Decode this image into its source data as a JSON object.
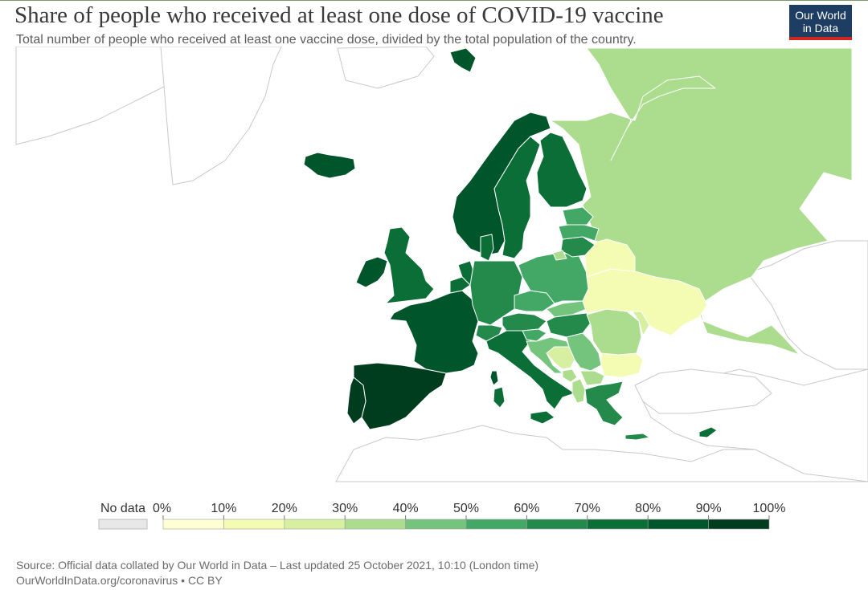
{
  "title": "Share of people who received at least one dose of COVID-19 vaccine",
  "subtitle": "Total number of people who received at least one vaccine dose, divided by the total population of the country.",
  "logo": {
    "line1": "Our World",
    "line2": "in Data"
  },
  "colors": {
    "top_line": "#7a9a6a",
    "border": "#ffffff",
    "background_land_stroke": "#c8c8c8",
    "no_data": "#e8e8e8"
  },
  "legend": {
    "no_data_label": "No data",
    "ticks": [
      "0%",
      "10%",
      "20%",
      "30%",
      "40%",
      "50%",
      "60%",
      "70%",
      "80%",
      "90%",
      "100%"
    ],
    "bin_colors": [
      "#ffffd4",
      "#f4fbb2",
      "#d6efa1",
      "#acdc8e",
      "#74c47d",
      "#43a866",
      "#238a4c",
      "#0b6e36",
      "#00552a",
      "#003d1f"
    ]
  },
  "source": {
    "line1": "Source: Official data collated by Our World in Data – Last updated 25 October 2021, 10:10 (London time)",
    "line2": "OurWorldInData.org/coronavirus • CC BY"
  },
  "countries": [
    {
      "id": "russia",
      "bin": 3
    },
    {
      "id": "norway",
      "bin": 8
    },
    {
      "id": "sweden",
      "bin": 7
    },
    {
      "id": "finland",
      "bin": 7
    },
    {
      "id": "iceland",
      "bin": 8
    },
    {
      "id": "svalbard",
      "bin": 8
    },
    {
      "id": "ireland",
      "bin": 8
    },
    {
      "id": "united-kingdom",
      "bin": 7
    },
    {
      "id": "france",
      "bin": 8
    },
    {
      "id": "spain",
      "bin": 9
    },
    {
      "id": "portugal",
      "bin": 9
    },
    {
      "id": "belgium",
      "bin": 7
    },
    {
      "id": "netherlands",
      "bin": 7
    },
    {
      "id": "denmark",
      "bin": 7
    },
    {
      "id": "germany",
      "bin": 6
    },
    {
      "id": "switzerland",
      "bin": 6
    },
    {
      "id": "austria",
      "bin": 6
    },
    {
      "id": "italy",
      "bin": 7
    },
    {
      "id": "czechia",
      "bin": 5
    },
    {
      "id": "poland",
      "bin": 5
    },
    {
      "id": "slovakia",
      "bin": 4
    },
    {
      "id": "hungary",
      "bin": 6
    },
    {
      "id": "slovenia",
      "bin": 5
    },
    {
      "id": "croatia",
      "bin": 4
    },
    {
      "id": "bosnia",
      "bin": 2
    },
    {
      "id": "serbia",
      "bin": 4
    },
    {
      "id": "montenegro",
      "bin": 3
    },
    {
      "id": "albania",
      "bin": 3
    },
    {
      "id": "north-macedonia",
      "bin": 3
    },
    {
      "id": "greece",
      "bin": 6
    },
    {
      "id": "bulgaria",
      "bin": 1
    },
    {
      "id": "romania",
      "bin": 3
    },
    {
      "id": "moldova",
      "bin": 2
    },
    {
      "id": "ukraine",
      "bin": 1
    },
    {
      "id": "belarus",
      "bin": 1
    },
    {
      "id": "lithuania",
      "bin": 6
    },
    {
      "id": "latvia",
      "bin": 5
    },
    {
      "id": "estonia",
      "bin": 5
    },
    {
      "id": "kaliningrad",
      "bin": 3
    },
    {
      "id": "cyprus",
      "bin": 7
    },
    {
      "id": "sardinia",
      "bin": 7
    },
    {
      "id": "corsica",
      "bin": 8
    },
    {
      "id": "sicily",
      "bin": 7
    },
    {
      "id": "crete",
      "bin": 6
    }
  ]
}
